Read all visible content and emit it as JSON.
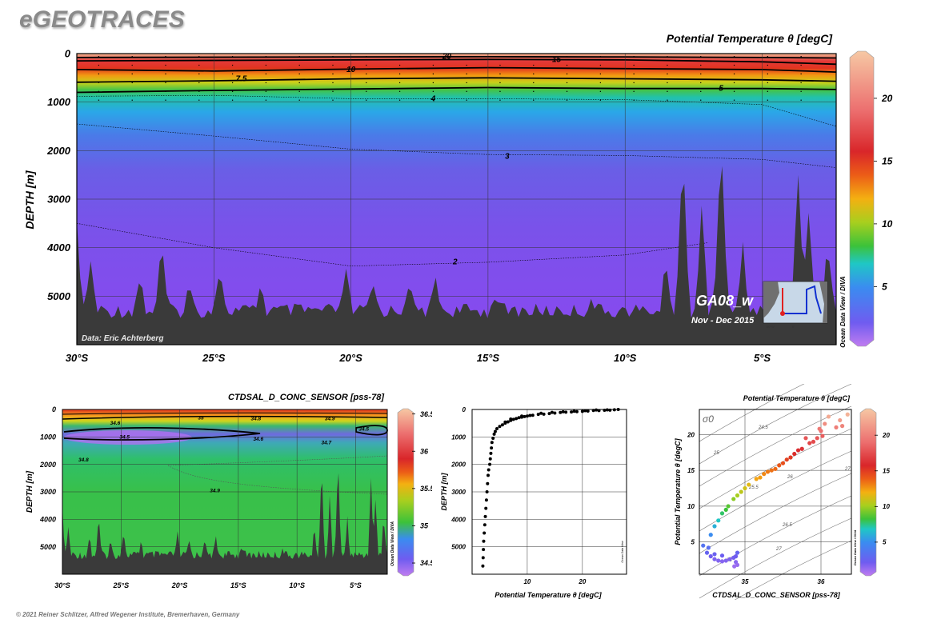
{
  "app_title": "eGEOTRACES",
  "footer": "© 2021 Reiner Schlitzer, Alfred Wegener Institute, Bremerhaven, Germany",
  "watermark": "Ocean Data View / DIVA",
  "watermark_small": "Ocean Data View",
  "colors": {
    "bathymetry": "#3a3a3a",
    "grid": "#555555",
    "contour": "#000000"
  },
  "chart_data": [
    {
      "id": "main-section",
      "type": "heatmap",
      "title": "Potential Temperature θ [degC]",
      "ylabel": "DEPTH [m]",
      "xlabel": "",
      "x_ticks": [
        "30°S",
        "25°S",
        "20°S",
        "15°S",
        "10°S",
        "5°S"
      ],
      "x_tick_values": [
        30,
        25,
        20,
        15,
        10,
        5
      ],
      "xlim": [
        30,
        2.3
      ],
      "y_ticks": [
        "0",
        "1000",
        "2000",
        "3000",
        "4000",
        "5000"
      ],
      "y_tick_values": [
        0,
        1000,
        2000,
        3000,
        4000,
        5000
      ],
      "ylim": [
        0,
        6000
      ],
      "colorbar_ticks": [
        "5",
        "10",
        "15",
        "20"
      ],
      "colorbar_values": [
        5,
        10,
        15,
        20
      ],
      "colorbar_range": [
        0.5,
        23.5
      ],
      "contours": [
        {
          "label": "20",
          "depths": [
            [
              30,
              80
            ],
            [
              20,
              70
            ],
            [
              15,
              65
            ],
            [
              10,
              70
            ],
            [
              5,
              80
            ],
            [
              2.3,
              90
            ]
          ]
        },
        {
          "label": "15",
          "depths": [
            [
              30,
              150
            ],
            [
              20,
              130
            ],
            [
              15,
              120
            ],
            [
              10,
              130
            ],
            [
              5,
              170
            ],
            [
              2.3,
              220
            ]
          ]
        },
        {
          "label": "10",
          "depths": [
            [
              30,
              330
            ],
            [
              25,
              360
            ],
            [
              20,
              320
            ],
            [
              15,
              290
            ],
            [
              10,
              310
            ],
            [
              5,
              330
            ],
            [
              2.3,
              380
            ]
          ]
        },
        {
          "label": "7.5",
          "depths": [
            [
              30,
              590
            ],
            [
              25,
              560
            ],
            [
              20,
              520
            ],
            [
              15,
              500
            ],
            [
              10,
              520
            ],
            [
              5,
              540
            ],
            [
              2.3,
              570
            ]
          ]
        },
        {
          "label": "5",
          "depths": [
            [
              30,
              800
            ],
            [
              25,
              760
            ],
            [
              20,
              730
            ],
            [
              15,
              700
            ],
            [
              10,
              720
            ],
            [
              5,
              720
            ],
            [
              2.3,
              740
            ]
          ]
        },
        {
          "label": "4",
          "depths": [
            [
              30,
              880
            ],
            [
              25,
              860
            ],
            [
              20,
              930
            ],
            [
              15,
              930
            ],
            [
              10,
              950
            ],
            [
              5,
              1050
            ],
            [
              2.3,
              1500
            ]
          ]
        },
        {
          "label": "3",
          "depths": [
            [
              30,
              1450
            ],
            [
              25,
              1700
            ],
            [
              20,
              1970
            ],
            [
              15,
              2080
            ],
            [
              10,
              2100
            ],
            [
              5,
              2180
            ],
            [
              2.3,
              2350
            ]
          ]
        },
        {
          "label": "2",
          "depths": [
            [
              30,
              3500
            ],
            [
              25,
              4000
            ],
            [
              20,
              4380
            ],
            [
              15,
              4300
            ],
            [
              10,
              4150
            ],
            [
              7,
              3900
            ]
          ]
        }
      ],
      "contour_labels": [
        {
          "text": "20",
          "x": 16.5,
          "y": 60
        },
        {
          "text": "15",
          "x": 12.5,
          "y": 120
        },
        {
          "text": "10",
          "x": 20,
          "y": 330
        },
        {
          "text": "7.5",
          "x": 24,
          "y": 520
        },
        {
          "text": "5",
          "x": 6.5,
          "y": 720
        },
        {
          "text": "4",
          "x": 17,
          "y": 930
        },
        {
          "text": "3",
          "x": 14.3,
          "y": 2120
        },
        {
          "text": "2",
          "x": 16.2,
          "y": 4290
        }
      ],
      "bathymetry_peaks": [
        [
          30,
          3600
        ],
        [
          29.5,
          4300
        ],
        [
          27.7,
          4580
        ],
        [
          26.9,
          3930
        ],
        [
          25.9,
          4770
        ],
        [
          24.8,
          4350
        ],
        [
          23.3,
          4750
        ],
        [
          20.2,
          4450
        ],
        [
          19.2,
          4720
        ],
        [
          17.9,
          4680
        ],
        [
          16.9,
          4600
        ],
        [
          14.7,
          4850
        ],
        [
          11.2,
          5000
        ],
        [
          8.5,
          4270
        ],
        [
          7.9,
          1950
        ],
        [
          7.2,
          3050
        ],
        [
          6.5,
          1560
        ],
        [
          5.7,
          4000
        ],
        [
          3.7,
          2340
        ],
        [
          3.3,
          3120
        ],
        [
          2.6,
          3870
        ]
      ],
      "annotations": {
        "section_label": "GA08_w",
        "date_label": "Nov - Dec 2015",
        "data_credit": "Data: Eric Achterberg"
      }
    },
    {
      "id": "salinity-section",
      "type": "heatmap",
      "title": "CTDSAL_D_CONC_SENSOR [pss-78]",
      "ylabel": "DEPTH [m]",
      "x_ticks": [
        "30°S",
        "25°S",
        "20°S",
        "15°S",
        "10°S",
        "5°S"
      ],
      "x_tick_values": [
        30,
        25,
        20,
        15,
        10,
        5
      ],
      "xlim": [
        30,
        2.3
      ],
      "y_ticks": [
        "0",
        "1000",
        "2000",
        "3000",
        "4000",
        "5000"
      ],
      "y_tick_values": [
        0,
        1000,
        2000,
        3000,
        4000,
        5000
      ],
      "ylim": [
        0,
        6000
      ],
      "colorbar_ticks": [
        "34.5",
        "35",
        "35.5",
        "36",
        "36.5"
      ],
      "colorbar_values": [
        34.5,
        35,
        35.5,
        36,
        36.5
      ],
      "colorbar_range": [
        34.35,
        36.55
      ],
      "contour_labels": [
        {
          "text": "34.6",
          "x": 25.5,
          "y": 470
        },
        {
          "text": "35",
          "x": 18.2,
          "y": 280
        },
        {
          "text": "34.8",
          "x": 13.5,
          "y": 310
        },
        {
          "text": "34.9",
          "x": 7.2,
          "y": 310
        },
        {
          "text": "34.5",
          "x": 4.3,
          "y": 680
        },
        {
          "text": "34.5",
          "x": 24.7,
          "y": 980
        },
        {
          "text": "34.6",
          "x": 13.3,
          "y": 1050
        },
        {
          "text": "34.7",
          "x": 7.5,
          "y": 1180
        },
        {
          "text": "34.8",
          "x": 28.2,
          "y": 1800
        },
        {
          "text": "34.9",
          "x": 17,
          "y": 2930
        }
      ]
    },
    {
      "id": "profile",
      "type": "scatter",
      "xlabel": "Potential Temperature θ [degC]",
      "ylabel": "DEPTH [m]",
      "x_ticks": [
        "10",
        "20"
      ],
      "x_tick_values": [
        10,
        20
      ],
      "xlim": [
        0,
        28
      ],
      "y_ticks": [
        "0",
        "1000",
        "2000",
        "3000",
        "4000",
        "5000"
      ],
      "y_tick_values": [
        0,
        1000,
        2000,
        3000,
        4000,
        5000
      ],
      "ylim": [
        0,
        6000
      ],
      "points": [
        [
          26.5,
          0
        ],
        [
          25.8,
          10
        ],
        [
          25,
          25
        ],
        [
          24,
          30
        ],
        [
          23,
          40
        ],
        [
          22,
          35
        ],
        [
          21,
          60
        ],
        [
          20,
          70
        ],
        [
          19,
          80
        ],
        [
          18,
          90
        ],
        [
          17,
          100
        ],
        [
          16,
          110
        ],
        [
          15,
          130
        ],
        [
          14,
          150
        ],
        [
          13,
          170
        ],
        [
          12,
          180
        ],
        [
          11,
          210
        ],
        [
          10.5,
          220
        ],
        [
          10,
          240
        ],
        [
          9.5,
          260
        ],
        [
          9,
          280
        ],
        [
          8.5,
          300
        ],
        [
          8,
          330
        ],
        [
          7.5,
          360
        ],
        [
          7,
          400
        ],
        [
          6.5,
          450
        ],
        [
          6,
          500
        ],
        [
          5.5,
          560
        ],
        [
          5,
          620
        ],
        [
          4.5,
          700
        ],
        [
          4.2,
          800
        ],
        [
          4,
          900
        ],
        [
          3.8,
          1050
        ],
        [
          3.6,
          1200
        ],
        [
          3.5,
          1400
        ],
        [
          3.4,
          1600
        ],
        [
          3.3,
          1800
        ],
        [
          3.2,
          2000
        ],
        [
          3,
          2200
        ],
        [
          2.9,
          2400
        ],
        [
          2.8,
          2700
        ],
        [
          2.7,
          3000
        ],
        [
          2.6,
          3300
        ],
        [
          2.5,
          3600
        ],
        [
          2.4,
          3900
        ],
        [
          2.3,
          4200
        ],
        [
          2.2,
          4500
        ],
        [
          2.1,
          4800
        ],
        [
          2.05,
          5100
        ],
        [
          2,
          5400
        ],
        [
          1.95,
          5700
        ],
        [
          24.5,
          15
        ],
        [
          22.5,
          20
        ],
        [
          20.5,
          45
        ],
        [
          18.5,
          65
        ],
        [
          16.5,
          85
        ],
        [
          14.5,
          105
        ],
        [
          12.5,
          140
        ],
        [
          9,
          240
        ],
        [
          7,
          350
        ],
        [
          6,
          460
        ]
      ]
    },
    {
      "id": "ts-diagram",
      "type": "scatter",
      "title": "Potential Temperature θ [degC]",
      "xlabel": "CTDSAL_D_CONC_SENSOR [pss-78]",
      "ylabel": "Potential Temperature θ [degC]",
      "x_ticks": [
        "35",
        "36"
      ],
      "x_tick_values": [
        35,
        36
      ],
      "xlim": [
        34.4,
        36.4
      ],
      "y_ticks": [
        "5",
        "10",
        "15",
        "20"
      ],
      "y_tick_values": [
        5,
        10,
        15,
        20
      ],
      "ylim": [
        0.5,
        23.5
      ],
      "colorbar_ticks": [
        "5",
        "10",
        "15",
        "20"
      ],
      "colorbar_values": [
        5,
        10,
        15,
        20
      ],
      "colorbar_range": [
        0.5,
        23.5
      ],
      "sigma_label": "σ0",
      "isopycnal_labels": [
        "24.5",
        "25",
        "25.5",
        "26",
        "27",
        "26.5",
        "27",
        "28"
      ],
      "points": [
        [
          34.45,
          4.5
        ],
        [
          34.5,
          3.5
        ],
        [
          34.55,
          3
        ],
        [
          34.6,
          2.6
        ],
        [
          34.65,
          2.4
        ],
        [
          34.7,
          2.3
        ],
        [
          34.75,
          2.4
        ],
        [
          34.8,
          2.6
        ],
        [
          34.85,
          2.8
        ],
        [
          34.88,
          3
        ],
        [
          34.9,
          3.5
        ],
        [
          34.88,
          2.2
        ],
        [
          34.9,
          1.8
        ],
        [
          34.86,
          1.6
        ],
        [
          34.6,
          3.3
        ],
        [
          34.7,
          3.1
        ],
        [
          34.52,
          4.2
        ],
        [
          34.55,
          6
        ],
        [
          34.6,
          7.2
        ],
        [
          34.65,
          8
        ],
        [
          34.7,
          9
        ],
        [
          34.78,
          10
        ],
        [
          34.85,
          11
        ],
        [
          34.95,
          12
        ],
        [
          35.05,
          13
        ],
        [
          35.15,
          13.8
        ],
        [
          35.25,
          14.5
        ],
        [
          35.35,
          15
        ],
        [
          35.45,
          15.7
        ],
        [
          35.55,
          16.5
        ],
        [
          35.65,
          17.3
        ],
        [
          35.75,
          18
        ],
        [
          35.85,
          18.8
        ],
        [
          35.95,
          19.5
        ],
        [
          36,
          20.5
        ],
        [
          36.05,
          21.5
        ],
        [
          36.1,
          22.5
        ],
        [
          35.9,
          19
        ],
        [
          36.02,
          19.8
        ],
        [
          35.98,
          20.8
        ],
        [
          35.7,
          17.8
        ],
        [
          35.6,
          16.8
        ],
        [
          35.3,
          14.8
        ],
        [
          35.2,
          14
        ],
        [
          35,
          12.5
        ],
        [
          34.9,
          11.5
        ],
        [
          34.75,
          9.5
        ],
        [
          36.2,
          21
        ],
        [
          36.25,
          22
        ],
        [
          36.28,
          21.2
        ],
        [
          36.35,
          22.8
        ],
        [
          35.8,
          19.5
        ],
        [
          35.5,
          16
        ],
        [
          35.4,
          15.2
        ]
      ]
    }
  ]
}
